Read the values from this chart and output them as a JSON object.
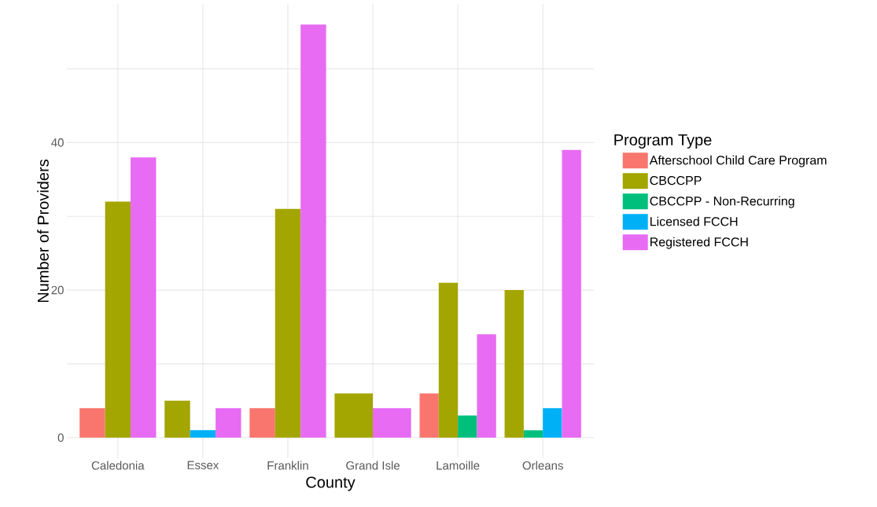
{
  "chart_data": {
    "type": "bar",
    "xlabel": "County",
    "ylabel": "Number of Providers",
    "legend_title": "Program Type",
    "categories": [
      "Caledonia",
      "Essex",
      "Franklin",
      "Grand Isle",
      "Lamoille",
      "Orleans"
    ],
    "series": [
      {
        "name": "Afterschool Child Care Program",
        "color": "#f8766d",
        "values": [
          4,
          null,
          4,
          null,
          6,
          null
        ]
      },
      {
        "name": "CBCCPP",
        "color": "#a3a500",
        "values": [
          32,
          5,
          31,
          6,
          21,
          20
        ]
      },
      {
        "name": "CBCCPP - Non-Recurring",
        "color": "#00bf7d",
        "values": [
          null,
          null,
          null,
          null,
          3,
          1
        ]
      },
      {
        "name": "Licensed FCCH",
        "color": "#00b0f6",
        "values": [
          null,
          1,
          null,
          null,
          null,
          4
        ]
      },
      {
        "name": "Registered FCCH",
        "color": "#e76bf3",
        "values": [
          38,
          4,
          56,
          4,
          14,
          39
        ]
      }
    ],
    "ylim": [
      -2.8,
      58.8
    ],
    "yticks": [
      0,
      {
        "value": 10,
        "label": null
      },
      20,
      {
        "value": 30,
        "label": null
      },
      40,
      {
        "value": 50,
        "label": null
      }
    ],
    "grid": true,
    "legend": "right"
  }
}
